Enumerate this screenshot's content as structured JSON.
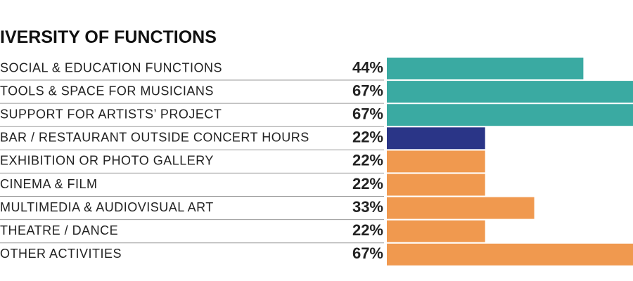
{
  "chart_data": {
    "type": "bar",
    "orientation": "horizontal",
    "title": "IVERSITY OF FUNCTIONS",
    "categories": [
      "SOCIAL & EDUCATION FUNCTIONS",
      "TOOLS & SPACE FOR MUSICIANS",
      "SUPPORT FOR ARTISTS’ PROJECT",
      "BAR / RESTAURANT OUTSIDE CONCERT HOURS",
      "EXHIBITION OR PHOTO GALLERY",
      "CINEMA & FILM",
      "MULTIMEDIA & AUDIOVISUAL ART",
      "THEATRE / DANCE",
      "OTHER ACTIVITIES"
    ],
    "values": [
      44,
      67,
      67,
      22,
      22,
      22,
      33,
      22,
      67
    ],
    "value_labels": [
      "44%",
      "67%",
      "67%",
      "22%",
      "22%",
      "22%",
      "33%",
      "22%",
      "67%"
    ],
    "colors": [
      "#3aaaa2",
      "#3aaaa2",
      "#3aaaa2",
      "#2a3587",
      "#f0994f",
      "#f0994f",
      "#f0994f",
      "#f0994f",
      "#f0994f"
    ]
  }
}
